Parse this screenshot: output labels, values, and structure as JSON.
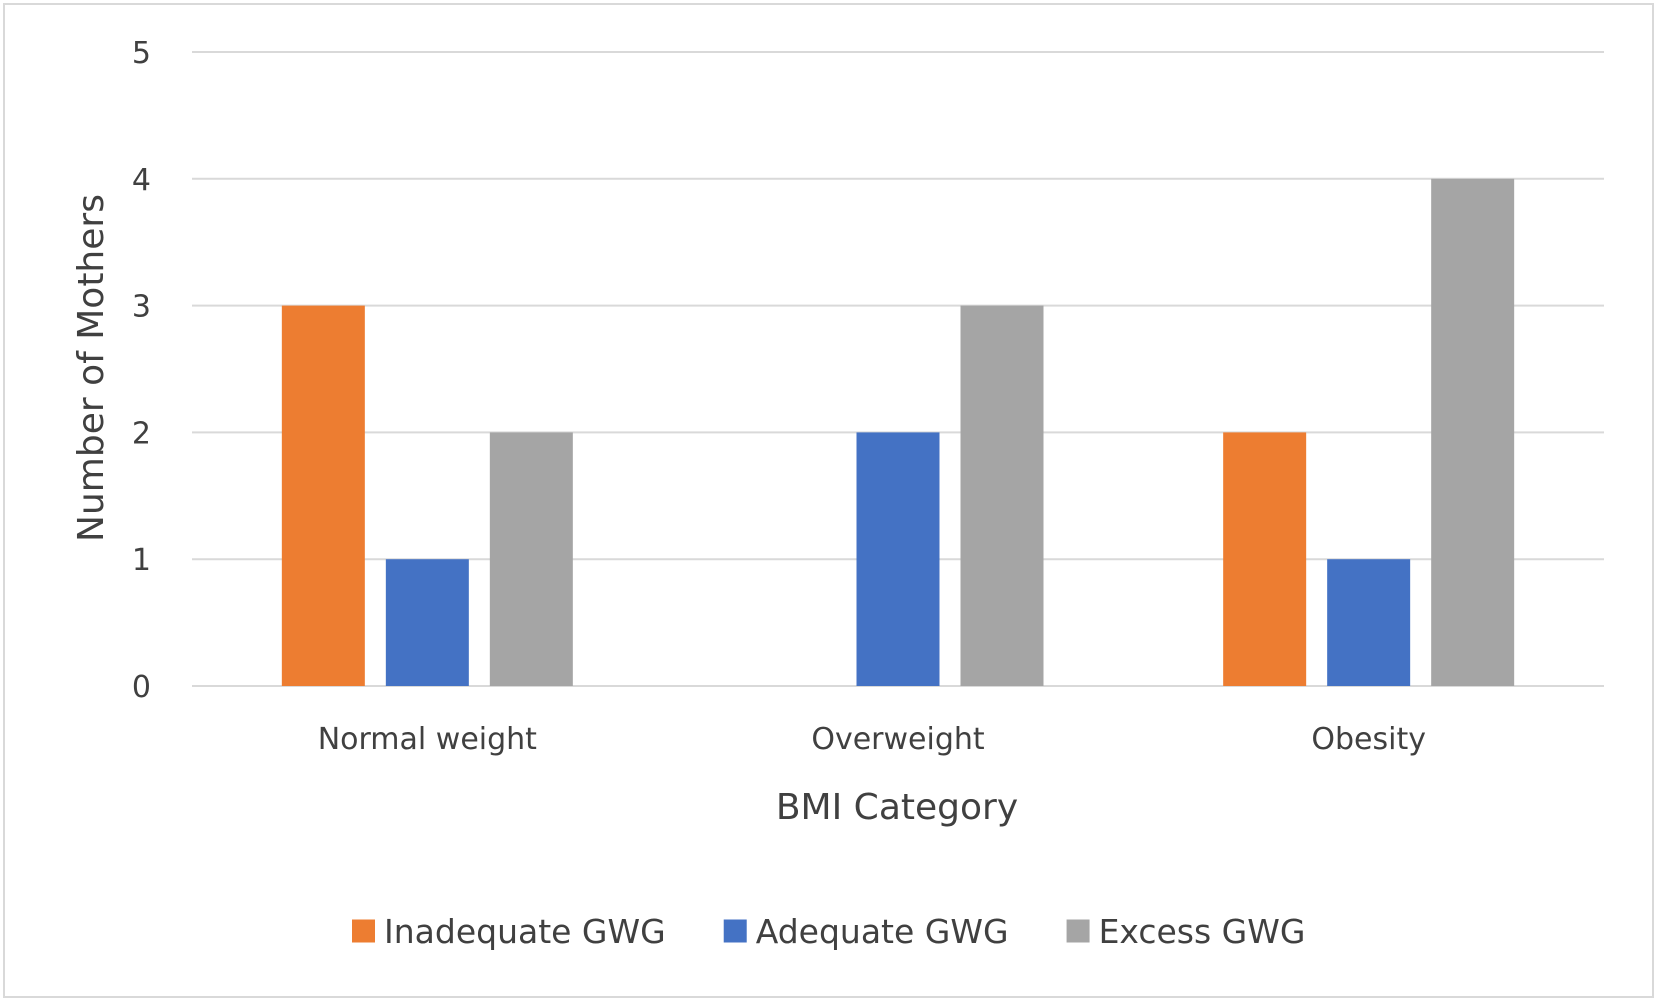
{
  "chart_data": {
    "type": "bar",
    "title": "",
    "xlabel": "BMI Category",
    "ylabel": "Number of Mothers",
    "categories": [
      "Normal weight",
      "Overweight",
      "Obesity"
    ],
    "series": [
      {
        "name": "Inadequate GWG",
        "values": [
          3,
          0,
          2
        ],
        "color": "#ed7d31"
      },
      {
        "name": "Adequate GWG",
        "values": [
          1,
          2,
          1
        ],
        "color": "#4472c4"
      },
      {
        "name": "Excess GWG",
        "values": [
          2,
          3,
          4
        ],
        "color": "#a5a5a5"
      }
    ],
    "ylim": [
      0,
      5
    ],
    "yticks": [
      "0",
      "1",
      "2",
      "3",
      "4",
      "5"
    ],
    "grid": true,
    "legend_position": "bottom"
  }
}
